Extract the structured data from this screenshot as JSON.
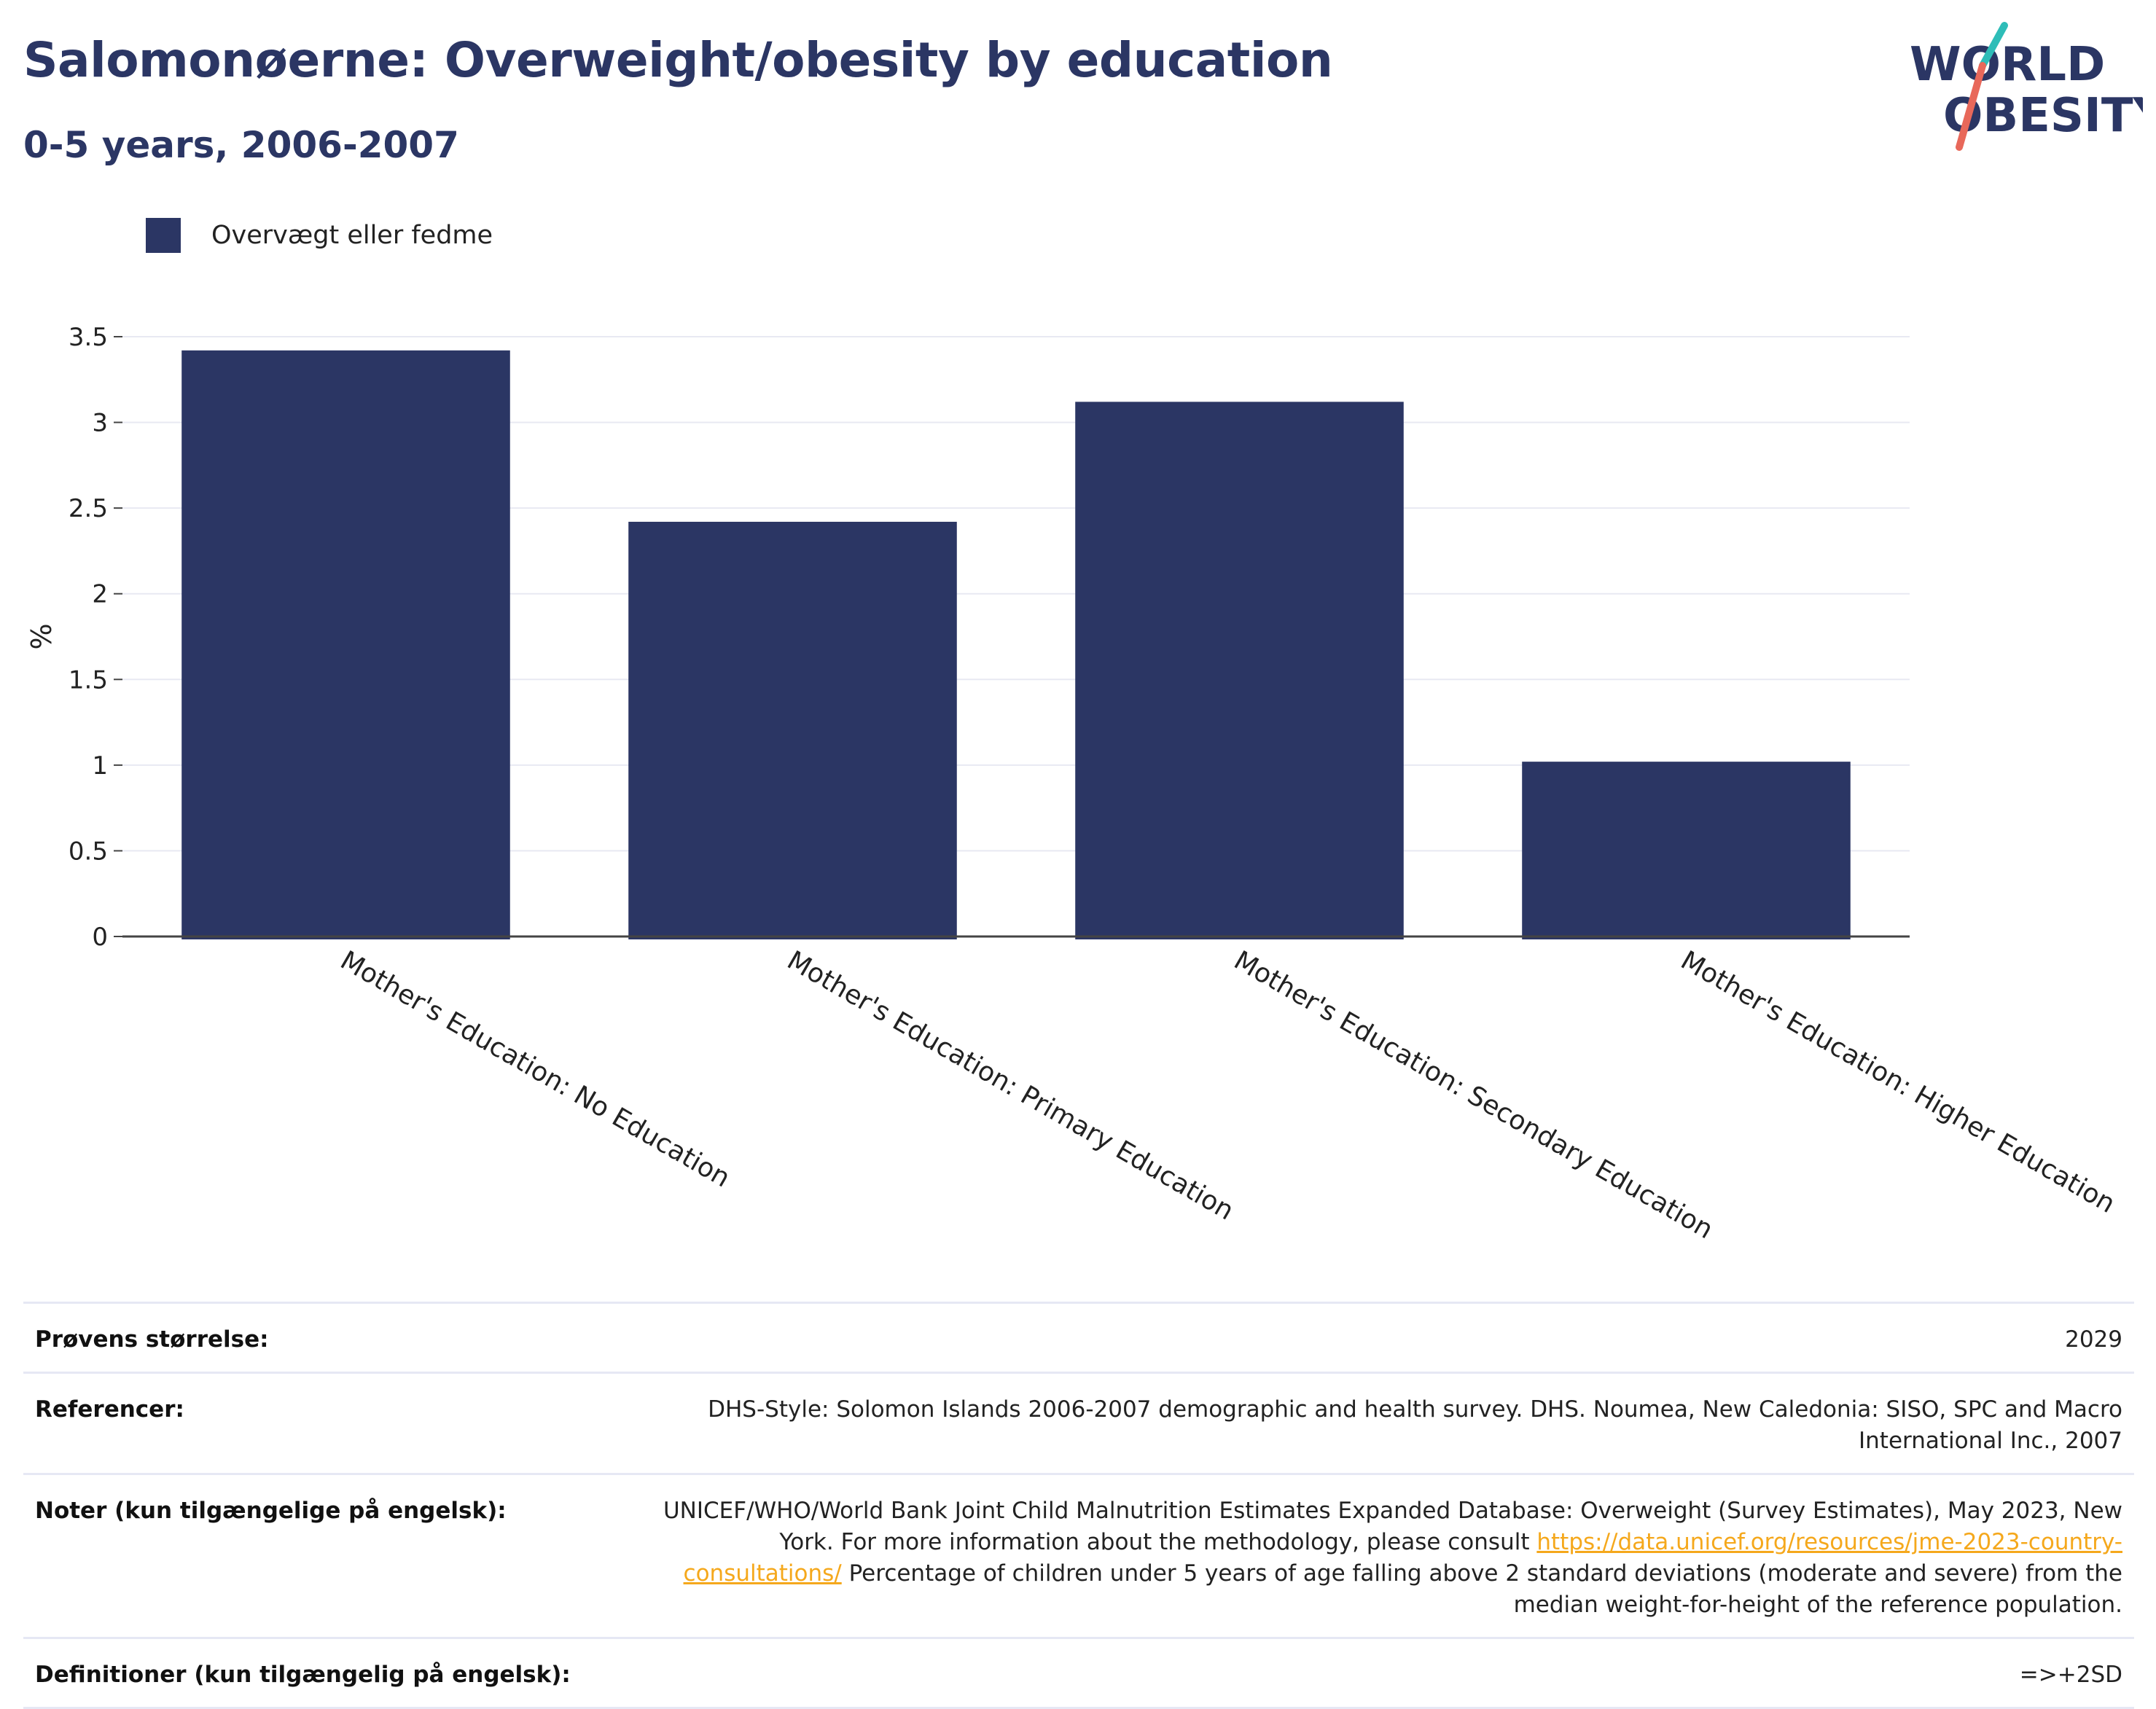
{
  "header": {
    "title": "Salomonøerne: Overweight/obesity by education",
    "subtitle": "0-5 years, 2006-2007"
  },
  "logo": {
    "line1": "WORLD",
    "line2": "OBESITY"
  },
  "legend": {
    "label": "Overvægt eller fedme",
    "color": "#2b3664"
  },
  "chart_data": {
    "type": "bar",
    "categories": [
      "Mother's Education: No Education",
      "Mother's Education: Primary Education",
      "Mother's Education: Secondary Education",
      "Mother's Education: Higher Education"
    ],
    "series": [
      {
        "name": "Overvægt eller fedme",
        "values": [
          3.42,
          2.42,
          3.12,
          1.02
        ],
        "color": "#2b3664"
      }
    ],
    "ylabel": "%",
    "ylim": [
      0,
      3.5
    ],
    "yticks": [
      0,
      0.5,
      1,
      1.5,
      2,
      2.5,
      3,
      3.5
    ],
    "ytick_labels": [
      "0",
      "0.5",
      "1",
      "1.5",
      "2",
      "2.5",
      "3",
      "3.5"
    ],
    "grid": true,
    "legend_position": "top-left"
  },
  "info": {
    "sample_size_label": "Prøvens størrelse:",
    "sample_size_value": "2029",
    "references_label": "Referencer:",
    "references_value": "DHS-Style: Solomon Islands 2006-2007 demographic and health survey. DHS. Noumea, New Caledonia: SISO, SPC and Macro International Inc., 2007",
    "notes_label": "Noter (kun tilgængelige på engelsk):",
    "notes_before_link": "UNICEF/WHO/World Bank Joint Child Malnutrition Estimates Expanded Database: Overweight (Survey Estimates), May 2023, New York. For more information about the methodology, please consult ",
    "notes_link": "https://data.unicef.org/resources/jme-2023-country-consultations/",
    "notes_after_link": " Percentage of children under 5 years of age falling above 2 standard deviations (moderate and severe) from the median weight-for-height of the reference population.",
    "definitions_label": "Definitioner (kun tilgængelig på engelsk):",
    "definitions_value": "=>+2SD"
  }
}
